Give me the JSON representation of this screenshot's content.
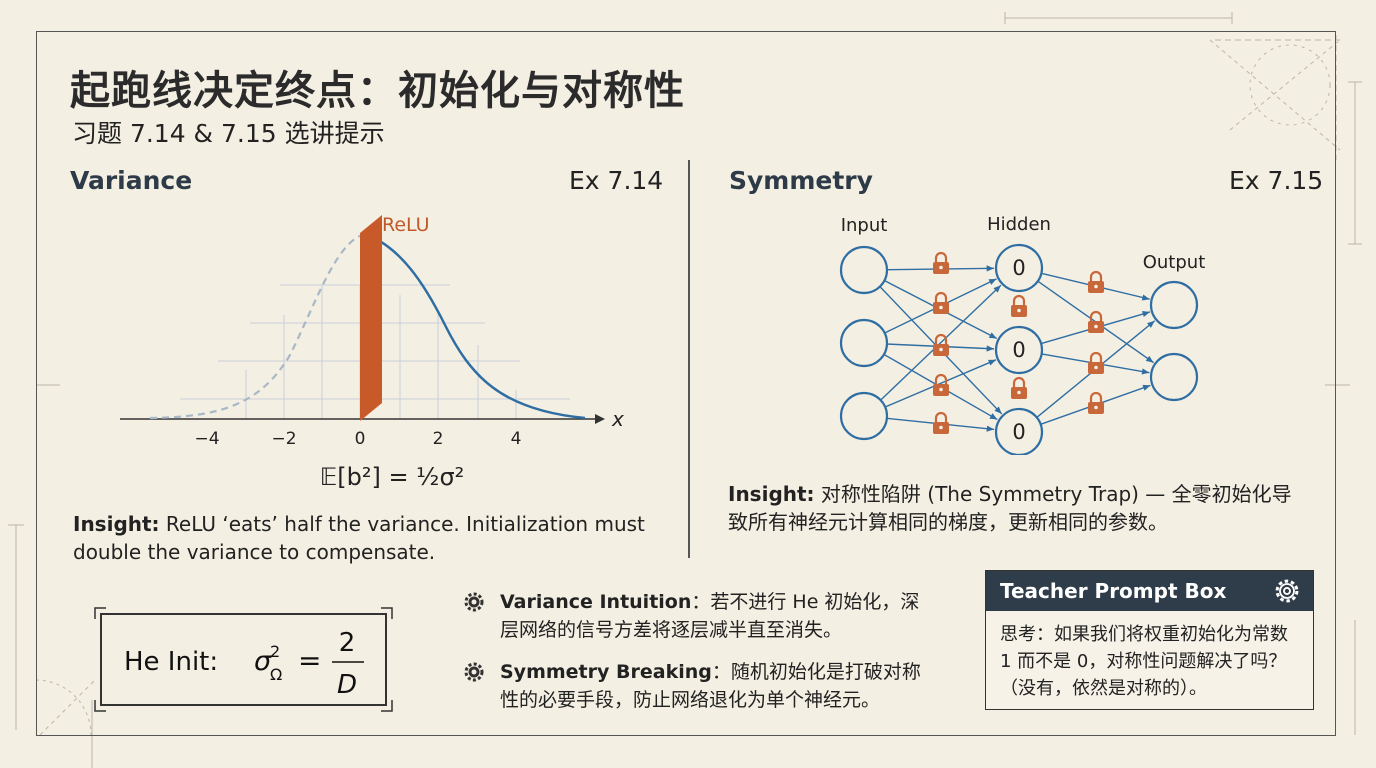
{
  "title": "起跑线决定终点：初始化与对称性",
  "subtitle": "习题 7.14 & 7.15 选讲提示",
  "left": {
    "heading": "Variance",
    "ex": "Ex 7.14",
    "relu_label": "ReLU",
    "x_axis_var": "x",
    "x_ticks": [
      "−4",
      "−2",
      "0",
      "2",
      "4"
    ],
    "formula": "𝔼[b²] = ½σ²",
    "insight_label": "Insight:",
    "insight_text": "ReLU ‘eats’ half the variance. Initialization must double the variance to compensate."
  },
  "right": {
    "heading": "Symmetry",
    "ex": "Ex 7.15",
    "input_label": "Input",
    "hidden_label": "Hidden",
    "output_label": "Output",
    "hidden_values": [
      "0",
      "0",
      "0"
    ],
    "insight_label": "Insight:",
    "insight_text": "对称性陷阱 (The Symmetry Trap) — 全零初始化导致所有神经元计算相同的梯度，更新相同的参数。"
  },
  "he_init": {
    "label": "He Init:",
    "lhs_sym": "σ",
    "lhs_sup": "2",
    "lhs_sub": "Ω",
    "equals": "=",
    "numerator": "2",
    "denominator": "D"
  },
  "tips": [
    {
      "icon": "gear-icon",
      "label": "Variance Intuition",
      "text": "：若不进行 He 初始化，深层网络的信号方差将逐层减半直至消失。"
    },
    {
      "icon": "gear-icon",
      "label": "Symmetry Breaking",
      "text": "：随机初始化是打破对称性的必要手段，防止网络退化为单个神经元。"
    }
  ],
  "teacher": {
    "title": "Teacher Prompt Box",
    "icon": "gear-icon",
    "text": "思考：如果我们将权重初始化为常数 1 而不是 0，对称性问题解决了吗？（没有，依然是对称的）。"
  },
  "colors": {
    "curve": "#2f6ea3",
    "relu": "#c85a2a",
    "lock": "#c8683a",
    "header_bg": "#2f3d4a",
    "background": "#f4efe3"
  }
}
